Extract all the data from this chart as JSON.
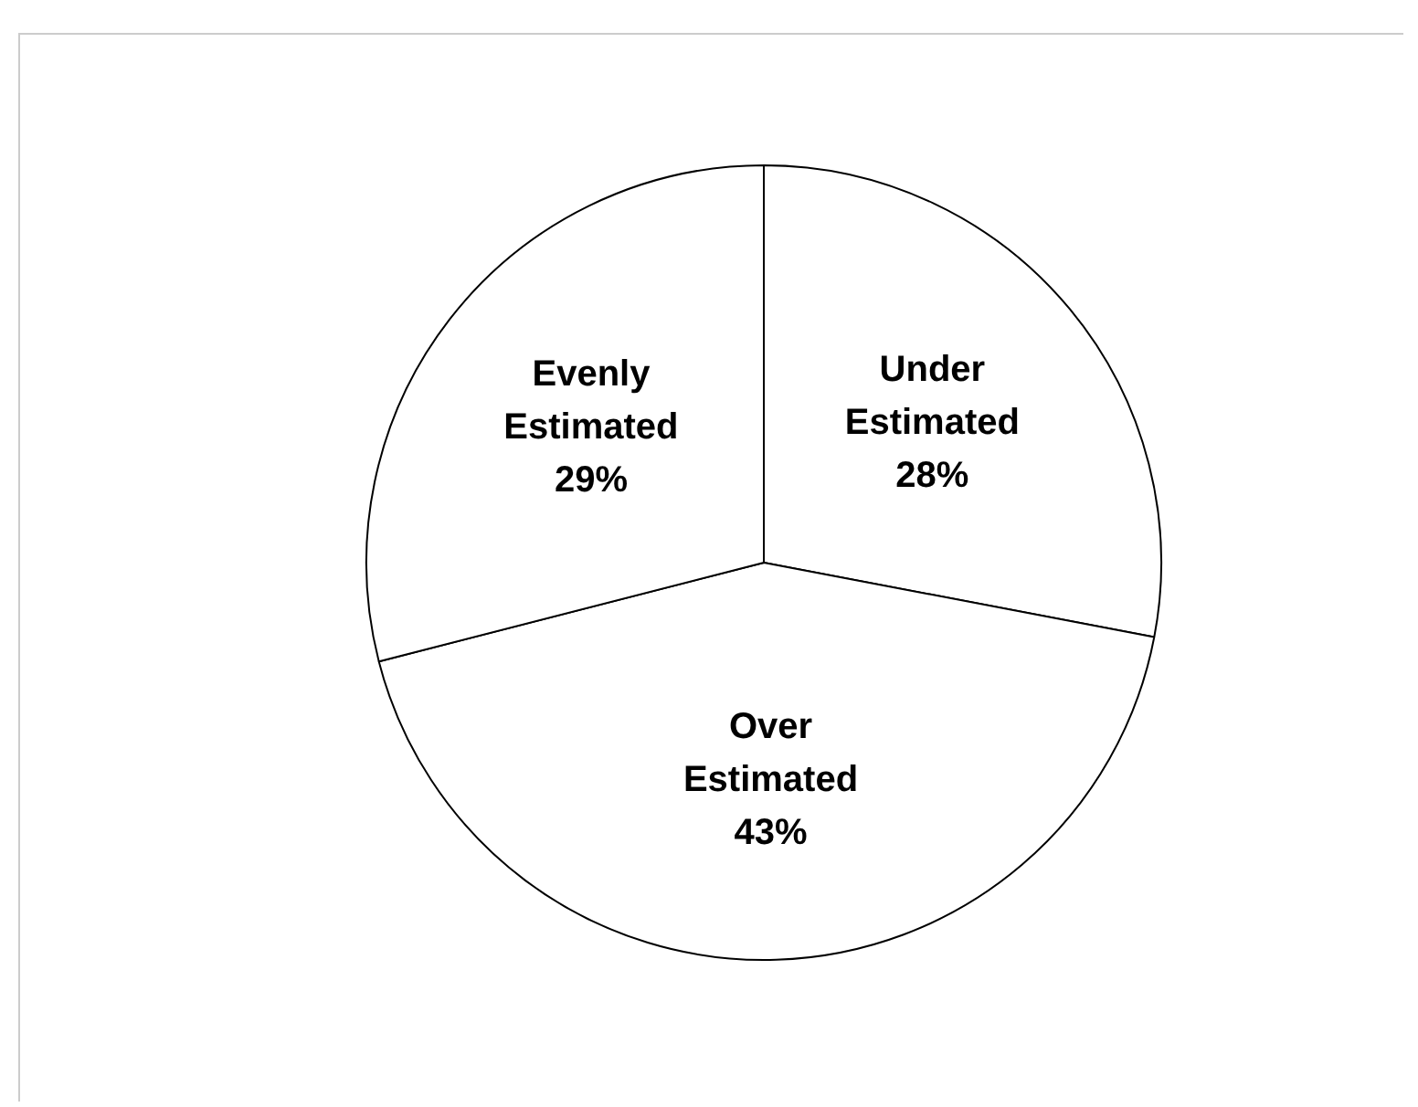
{
  "chart_data": {
    "type": "pie",
    "categories": [
      "Under Estimated",
      "Over Estimated",
      "Evenly Estimated"
    ],
    "values": [
      28,
      43,
      29
    ],
    "colors": [
      "#ffffff",
      "#ffffff",
      "#ffffff"
    ],
    "value_labels": [
      "28%",
      "43%",
      "29%"
    ],
    "legend": false
  }
}
